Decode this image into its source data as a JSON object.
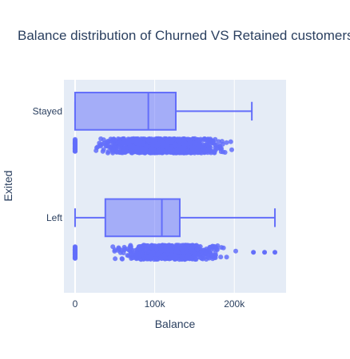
{
  "chart_data": {
    "type": "box",
    "orientation": "horizontal",
    "title": "Balance distribution of Churned VS Retained customers",
    "xlabel": "Balance",
    "ylabel": "Exited",
    "xlim": [
      -14000,
      265000
    ],
    "x_ticks": [
      {
        "value": 0,
        "label": "0"
      },
      {
        "value": 100000,
        "label": "100k"
      },
      {
        "value": 200000,
        "label": "200k"
      }
    ],
    "categories": [
      "Stayed",
      "Left"
    ],
    "color": "#636efa",
    "plot_background": "#e5ecf6",
    "grid": true,
    "points": "all",
    "boxes": [
      {
        "category": "Stayed",
        "min": 0,
        "q1": 0,
        "median": 92000,
        "q3": 126500,
        "max": 222000,
        "outliers": []
      },
      {
        "category": "Left",
        "min": 0,
        "q1": 38000,
        "median": 109000,
        "q3": 131500,
        "max": 251000,
        "outliers": [
          224000,
          238000,
          251000
        ]
      }
    ]
  }
}
